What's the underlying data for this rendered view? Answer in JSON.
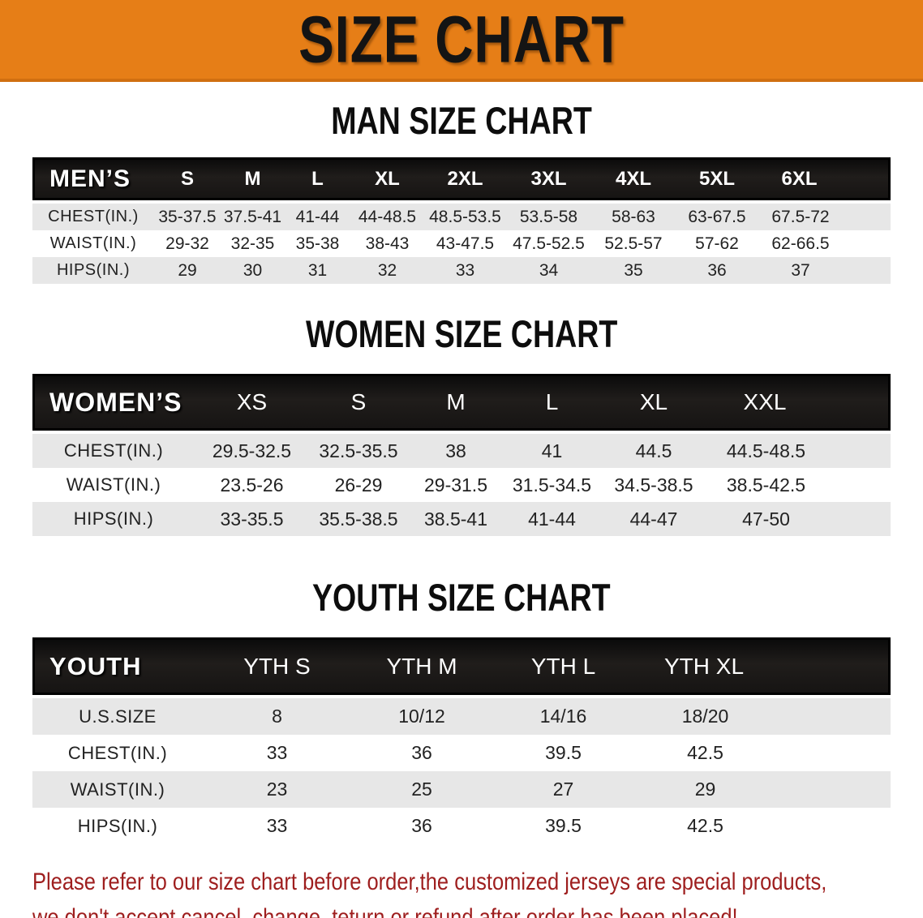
{
  "banner": {
    "title": "SIZE CHART",
    "bg_color": "#e67e17",
    "text_color": "#141414"
  },
  "men": {
    "title": "MAN SIZE CHART",
    "label": "MEN’S",
    "sizes": [
      "S",
      "M",
      "L",
      "XL",
      "2XL",
      "3XL",
      "4XL",
      "5XL",
      "6XL"
    ],
    "rows": [
      {
        "label": "CHEST(IN.)",
        "values": [
          "35-37.5",
          "37.5-41",
          "41-44",
          "44-48.5",
          "48.5-53.5",
          "53.5-58",
          "58-63",
          "63-67.5",
          "67.5-72"
        ]
      },
      {
        "label": "WAIST(IN.)",
        "values": [
          "29-32",
          "32-35",
          "35-38",
          "38-43",
          "43-47.5",
          "47.5-52.5",
          "52.5-57",
          "57-62",
          "62-66.5"
        ]
      },
      {
        "label": "HIPS(IN.)",
        "values": [
          "29",
          "30",
          "31",
          "32",
          "33",
          "34",
          "35",
          "36",
          "37"
        ]
      }
    ]
  },
  "women": {
    "title": "WOMEN SIZE CHART",
    "label": "WOMEN’S",
    "sizes": [
      "XS",
      "S",
      "M",
      "L",
      "XL",
      "XXL"
    ],
    "rows": [
      {
        "label": "CHEST(IN.)",
        "values": [
          "29.5-32.5",
          "32.5-35.5",
          "38",
          "41",
          "44.5",
          "44.5-48.5"
        ]
      },
      {
        "label": "WAIST(IN.)",
        "values": [
          "23.5-26",
          "26-29",
          "29-31.5",
          "31.5-34.5",
          "34.5-38.5",
          "38.5-42.5"
        ]
      },
      {
        "label": "HIPS(IN.)",
        "values": [
          "33-35.5",
          "35.5-38.5",
          "38.5-41",
          "41-44",
          "44-47",
          "47-50"
        ]
      }
    ]
  },
  "youth": {
    "title": "YOUTH SIZE CHART",
    "label": "YOUTH",
    "sizes": [
      "YTH S",
      "YTH M",
      "YTH L",
      "YTH XL"
    ],
    "rows": [
      {
        "label": "U.S.SIZE",
        "values": [
          "8",
          "10/12",
          "14/16",
          "18/20"
        ]
      },
      {
        "label": "CHEST(IN.)",
        "values": [
          "33",
          "36",
          "39.5",
          "42.5"
        ]
      },
      {
        "label": "WAIST(IN.)",
        "values": [
          "23",
          "25",
          "27",
          "29"
        ]
      },
      {
        "label": "HIPS(IN.)",
        "values": [
          "33",
          "36",
          "39.5",
          "42.5"
        ]
      }
    ]
  },
  "disclaimer": {
    "line1": "Please refer to our size chart before order,the customized jerseys are special products,",
    "line2": "we don't accept cancel, change, teturn or refund after order has been placed!",
    "color": "#9e1e1e"
  },
  "colors": {
    "banner_bg": "#e67e17",
    "header_band_bg": "#161413",
    "row_alt_bg": "#e7e7e7",
    "body_text": "#222222",
    "disclaimer_text": "#9e1e1e"
  }
}
